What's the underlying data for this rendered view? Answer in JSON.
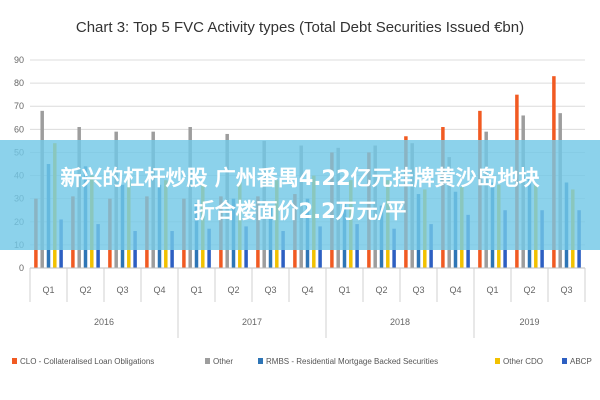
{
  "banner": {
    "line1": "新兴的杠杆炒股 广州番禺4.22亿元挂牌黄沙岛地块",
    "line2": "折合楼面价2.2万元/平"
  },
  "chart_data": {
    "type": "bar",
    "title": "Chart 3: Top 5 FVC Activity types (Total Debt Securities Issued €bn)",
    "xlabel": "",
    "ylabel": "",
    "ylim": [
      0,
      90
    ],
    "yticks": [
      0,
      10,
      20,
      30,
      40,
      50,
      60,
      70,
      80,
      90
    ],
    "grid": true,
    "legend": "bottom",
    "categories": [
      "Q1",
      "Q2",
      "Q3",
      "Q4",
      "Q1",
      "Q2",
      "Q3",
      "Q4",
      "Q1",
      "Q2",
      "Q3",
      "Q4",
      "Q1",
      "Q2",
      "Q3"
    ],
    "groups": [
      {
        "label": "2016",
        "count": 4
      },
      {
        "label": "2017",
        "count": 4
      },
      {
        "label": "2018",
        "count": 4
      },
      {
        "label": "2019",
        "count": 3
      }
    ],
    "series": [
      {
        "name": "CLO - Collateralised Loan Obligations",
        "color": "#f15a22",
        "values": [
          30,
          31,
          30,
          31,
          30,
          31,
          31,
          32,
          50,
          50,
          57,
          61,
          68,
          75,
          83
        ]
      },
      {
        "name": "Other",
        "color": "#9d9d9d",
        "values": [
          68,
          61,
          59,
          59,
          61,
          58,
          55,
          53,
          52,
          53,
          54,
          48,
          59,
          66,
          67
        ]
      },
      {
        "name": "RMBS - Residential Mortgage Backed Securities",
        "color": "#2e75b6",
        "values": [
          45,
          44,
          36,
          36,
          28,
          30,
          26,
          30,
          28,
          27,
          32,
          33,
          37,
          39,
          37
        ]
      },
      {
        "name": "Other CDO",
        "color": "#f2c100",
        "values": [
          54,
          40,
          38,
          38,
          36,
          37,
          38,
          40,
          38,
          38,
          34,
          35,
          36,
          36,
          34
        ]
      },
      {
        "name": "ABCP",
        "color": "#2d5fc2",
        "values": [
          21,
          19,
          16,
          16,
          17,
          18,
          16,
          18,
          19,
          17,
          19,
          23,
          25,
          25,
          25
        ]
      }
    ]
  }
}
